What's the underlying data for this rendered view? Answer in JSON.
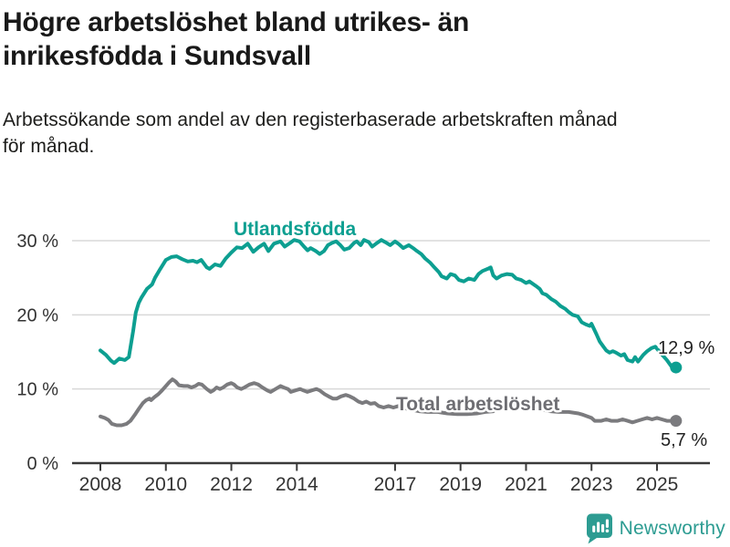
{
  "header": {
    "title": "Högre arbetslöshet bland utrikes- än\ninrikesfödda i Sundsvall",
    "subtitle": "Arbetssökande som andel av den registerbaserade arbetskraften månad\nför månad."
  },
  "footer": {
    "brand": "Newsworthy",
    "brand_color": "#2d9c92",
    "logo_icon": "bar-chart-exclamation-speech-bubble"
  },
  "chart_data": {
    "type": "line",
    "title": "Högre arbetslöshet bland utrikes- än inrikesfödda i Sundsvall",
    "subtitle": "Arbetssökande som andel av den registerbaserade arbetskraften månad för månad.",
    "unit": "%",
    "grid": true,
    "legend": "inline-labels",
    "colors": {
      "grid": "#d9d9d9",
      "axis": "#3a3a3a",
      "tick_text": "#333333",
      "value_label_text": "#222222"
    },
    "x_axis": {
      "range": [
        2007.15,
        2026.6
      ],
      "ticks": [
        {
          "label": "2008",
          "value": 2008
        },
        {
          "label": "2010",
          "value": 2010
        },
        {
          "label": "2012",
          "value": 2012
        },
        {
          "label": "2014",
          "value": 2014
        },
        {
          "label": "2017",
          "value": 2017
        },
        {
          "label": "2019",
          "value": 2019
        },
        {
          "label": "2021",
          "value": 2021
        },
        {
          "label": "2023",
          "value": 2023
        },
        {
          "label": "2025",
          "value": 2025
        }
      ]
    },
    "y_axis": {
      "range": [
        0,
        31.8
      ],
      "ticks": [
        {
          "label": "0 %",
          "value": 0
        },
        {
          "label": "10 %",
          "value": 10
        },
        {
          "label": "20 %",
          "value": 20
        },
        {
          "label": "30 %",
          "value": 30
        }
      ]
    },
    "series": [
      {
        "name": "Total arbetslöshet",
        "color": "#7b7b7e",
        "label_color": "#6e6e73",
        "end_label": "5,7 %",
        "name_label_pos": {
          "x": 434,
          "y": 450
        },
        "end_label_pos": {
          "x": 724,
          "y": 489
        },
        "points": [
          [
            2008.0,
            6.3
          ],
          [
            2008.13,
            6.1
          ],
          [
            2008.25,
            5.8
          ],
          [
            2008.35,
            5.3
          ],
          [
            2008.5,
            5.1
          ],
          [
            2008.65,
            5.1
          ],
          [
            2008.8,
            5.3
          ],
          [
            2008.92,
            5.7
          ],
          [
            2009.05,
            6.5
          ],
          [
            2009.17,
            7.3
          ],
          [
            2009.3,
            8.1
          ],
          [
            2009.4,
            8.5
          ],
          [
            2009.5,
            8.7
          ],
          [
            2009.55,
            8.5
          ],
          [
            2009.65,
            8.9
          ],
          [
            2009.77,
            9.3
          ],
          [
            2009.88,
            9.8
          ],
          [
            2010.0,
            10.4
          ],
          [
            2010.1,
            10.9
          ],
          [
            2010.2,
            11.3
          ],
          [
            2010.3,
            11.0
          ],
          [
            2010.4,
            10.5
          ],
          [
            2010.55,
            10.4
          ],
          [
            2010.67,
            10.4
          ],
          [
            2010.78,
            10.2
          ],
          [
            2010.9,
            10.4
          ],
          [
            2011.0,
            10.7
          ],
          [
            2011.1,
            10.6
          ],
          [
            2011.25,
            10.0
          ],
          [
            2011.37,
            9.6
          ],
          [
            2011.45,
            9.8
          ],
          [
            2011.55,
            10.2
          ],
          [
            2011.65,
            10.0
          ],
          [
            2011.75,
            10.2
          ],
          [
            2011.87,
            10.6
          ],
          [
            2012.0,
            10.8
          ],
          [
            2012.08,
            10.6
          ],
          [
            2012.18,
            10.2
          ],
          [
            2012.3,
            10.0
          ],
          [
            2012.4,
            10.2
          ],
          [
            2012.55,
            10.6
          ],
          [
            2012.7,
            10.8
          ],
          [
            2012.82,
            10.6
          ],
          [
            2012.95,
            10.2
          ],
          [
            2013.1,
            9.8
          ],
          [
            2013.2,
            9.6
          ],
          [
            2013.35,
            10.0
          ],
          [
            2013.5,
            10.4
          ],
          [
            2013.6,
            10.2
          ],
          [
            2013.73,
            10.0
          ],
          [
            2013.82,
            9.6
          ],
          [
            2013.95,
            9.8
          ],
          [
            2014.1,
            10.0
          ],
          [
            2014.2,
            9.8
          ],
          [
            2014.32,
            9.6
          ],
          [
            2014.45,
            9.8
          ],
          [
            2014.6,
            10.0
          ],
          [
            2014.7,
            9.8
          ],
          [
            2014.85,
            9.3
          ],
          [
            2014.97,
            9.0
          ],
          [
            2015.1,
            8.7
          ],
          [
            2015.22,
            8.7
          ],
          [
            2015.35,
            9.0
          ],
          [
            2015.5,
            9.2
          ],
          [
            2015.62,
            9.0
          ],
          [
            2015.75,
            8.7
          ],
          [
            2015.88,
            8.3
          ],
          [
            2016.0,
            8.1
          ],
          [
            2016.12,
            8.3
          ],
          [
            2016.25,
            8.0
          ],
          [
            2016.38,
            8.1
          ],
          [
            2016.5,
            7.7
          ],
          [
            2016.65,
            7.5
          ],
          [
            2016.8,
            7.7
          ],
          [
            2016.95,
            7.5
          ],
          [
            2017.1,
            7.7
          ],
          [
            2017.3,
            7.4
          ],
          [
            2017.5,
            7.2
          ],
          [
            2017.75,
            7.0
          ],
          [
            2018.0,
            6.9
          ],
          [
            2018.3,
            6.9
          ],
          [
            2018.6,
            6.7
          ],
          [
            2018.9,
            6.6
          ],
          [
            2019.2,
            6.6
          ],
          [
            2019.5,
            6.7
          ],
          [
            2019.75,
            6.9
          ],
          [
            2020.0,
            7.0
          ],
          [
            2020.2,
            7.7
          ],
          [
            2020.4,
            8.0
          ],
          [
            2020.6,
            7.9
          ],
          [
            2020.8,
            7.7
          ],
          [
            2021.0,
            7.6
          ],
          [
            2021.25,
            7.4
          ],
          [
            2021.5,
            7.2
          ],
          [
            2021.75,
            7.0
          ],
          [
            2022.0,
            6.9
          ],
          [
            2022.3,
            6.9
          ],
          [
            2022.6,
            6.7
          ],
          [
            2022.75,
            6.5
          ],
          [
            2023.0,
            6.1
          ],
          [
            2023.1,
            5.7
          ],
          [
            2023.3,
            5.7
          ],
          [
            2023.45,
            5.9
          ],
          [
            2023.6,
            5.7
          ],
          [
            2023.8,
            5.7
          ],
          [
            2023.95,
            5.9
          ],
          [
            2024.1,
            5.7
          ],
          [
            2024.25,
            5.5
          ],
          [
            2024.4,
            5.7
          ],
          [
            2024.55,
            5.9
          ],
          [
            2024.7,
            6.1
          ],
          [
            2024.85,
            5.9
          ],
          [
            2025.0,
            6.1
          ],
          [
            2025.15,
            5.9
          ],
          [
            2025.3,
            5.7
          ],
          [
            2025.45,
            5.7
          ],
          [
            2025.58,
            5.7
          ]
        ]
      },
      {
        "name": "Utlandsfödda",
        "color": "#0d9f91",
        "label_color": "#0d9f91",
        "end_label": "12,9 %",
        "name_label_pos": {
          "x": 256,
          "y": 258
        },
        "end_label_pos": {
          "x": 721,
          "y": 388
        },
        "points": [
          [
            2008.0,
            15.2
          ],
          [
            2008.17,
            14.6
          ],
          [
            2008.33,
            13.8
          ],
          [
            2008.42,
            13.5
          ],
          [
            2008.58,
            14.1
          ],
          [
            2008.75,
            13.9
          ],
          [
            2008.87,
            14.3
          ],
          [
            2009.0,
            17.8
          ],
          [
            2009.08,
            20.3
          ],
          [
            2009.17,
            21.6
          ],
          [
            2009.25,
            22.3
          ],
          [
            2009.42,
            23.5
          ],
          [
            2009.58,
            24.1
          ],
          [
            2009.67,
            25.0
          ],
          [
            2009.83,
            26.2
          ],
          [
            2010.0,
            27.4
          ],
          [
            2010.17,
            27.8
          ],
          [
            2010.33,
            27.9
          ],
          [
            2010.5,
            27.5
          ],
          [
            2010.67,
            27.2
          ],
          [
            2010.83,
            27.3
          ],
          [
            2010.95,
            27.1
          ],
          [
            2011.08,
            27.4
          ],
          [
            2011.25,
            26.4
          ],
          [
            2011.33,
            26.2
          ],
          [
            2011.5,
            26.8
          ],
          [
            2011.67,
            26.6
          ],
          [
            2011.83,
            27.6
          ],
          [
            2012.0,
            28.4
          ],
          [
            2012.17,
            29.1
          ],
          [
            2012.33,
            29.0
          ],
          [
            2012.5,
            29.6
          ],
          [
            2012.67,
            28.5
          ],
          [
            2012.83,
            29.1
          ],
          [
            2013.0,
            29.6
          ],
          [
            2013.13,
            28.6
          ],
          [
            2013.3,
            29.6
          ],
          [
            2013.5,
            29.9
          ],
          [
            2013.63,
            29.2
          ],
          [
            2013.8,
            29.7
          ],
          [
            2013.92,
            30.1
          ],
          [
            2014.08,
            29.9
          ],
          [
            2014.2,
            29.3
          ],
          [
            2014.33,
            28.7
          ],
          [
            2014.42,
            29.0
          ],
          [
            2014.58,
            28.6
          ],
          [
            2014.7,
            28.2
          ],
          [
            2014.83,
            28.6
          ],
          [
            2014.95,
            29.4
          ],
          [
            2015.08,
            29.7
          ],
          [
            2015.2,
            29.9
          ],
          [
            2015.33,
            29.4
          ],
          [
            2015.45,
            28.8
          ],
          [
            2015.6,
            29.0
          ],
          [
            2015.75,
            29.7
          ],
          [
            2015.83,
            29.9
          ],
          [
            2015.95,
            29.4
          ],
          [
            2016.05,
            30.1
          ],
          [
            2016.2,
            29.8
          ],
          [
            2016.3,
            29.2
          ],
          [
            2016.42,
            29.6
          ],
          [
            2016.58,
            30.1
          ],
          [
            2016.7,
            29.8
          ],
          [
            2016.85,
            29.4
          ],
          [
            2017.0,
            29.9
          ],
          [
            2017.1,
            29.6
          ],
          [
            2017.25,
            29.0
          ],
          [
            2017.42,
            29.4
          ],
          [
            2017.55,
            29.0
          ],
          [
            2017.67,
            28.6
          ],
          [
            2017.8,
            28.2
          ],
          [
            2017.92,
            27.6
          ],
          [
            2018.08,
            27.0
          ],
          [
            2018.2,
            26.4
          ],
          [
            2018.33,
            25.8
          ],
          [
            2018.42,
            25.2
          ],
          [
            2018.58,
            24.9
          ],
          [
            2018.7,
            25.5
          ],
          [
            2018.83,
            25.3
          ],
          [
            2018.95,
            24.7
          ],
          [
            2019.1,
            24.5
          ],
          [
            2019.25,
            24.9
          ],
          [
            2019.42,
            24.7
          ],
          [
            2019.55,
            25.5
          ],
          [
            2019.67,
            25.9
          ],
          [
            2019.83,
            26.2
          ],
          [
            2019.92,
            26.4
          ],
          [
            2020.0,
            25.3
          ],
          [
            2020.1,
            24.9
          ],
          [
            2020.25,
            25.3
          ],
          [
            2020.42,
            25.5
          ],
          [
            2020.58,
            25.4
          ],
          [
            2020.7,
            24.9
          ],
          [
            2020.85,
            24.7
          ],
          [
            2021.0,
            24.3
          ],
          [
            2021.1,
            24.5
          ],
          [
            2021.3,
            23.9
          ],
          [
            2021.42,
            23.5
          ],
          [
            2021.5,
            22.9
          ],
          [
            2021.62,
            22.7
          ],
          [
            2021.78,
            22.1
          ],
          [
            2021.9,
            21.8
          ],
          [
            2022.05,
            21.2
          ],
          [
            2022.2,
            20.8
          ],
          [
            2022.3,
            20.4
          ],
          [
            2022.42,
            20.0
          ],
          [
            2022.58,
            19.8
          ],
          [
            2022.7,
            19.0
          ],
          [
            2022.83,
            18.7
          ],
          [
            2022.95,
            18.5
          ],
          [
            2023.0,
            18.8
          ],
          [
            2023.15,
            17.4
          ],
          [
            2023.25,
            16.4
          ],
          [
            2023.38,
            15.6
          ],
          [
            2023.45,
            15.2
          ],
          [
            2023.55,
            14.9
          ],
          [
            2023.65,
            15.1
          ],
          [
            2023.75,
            14.9
          ],
          [
            2023.9,
            14.5
          ],
          [
            2024.0,
            14.7
          ],
          [
            2024.1,
            13.9
          ],
          [
            2024.25,
            13.7
          ],
          [
            2024.33,
            14.3
          ],
          [
            2024.42,
            13.7
          ],
          [
            2024.58,
            14.6
          ],
          [
            2024.7,
            15.1
          ],
          [
            2024.83,
            15.5
          ],
          [
            2024.95,
            15.7
          ],
          [
            2025.1,
            14.9
          ],
          [
            2025.3,
            13.9
          ],
          [
            2025.45,
            13.0
          ],
          [
            2025.58,
            12.9
          ]
        ]
      }
    ]
  }
}
